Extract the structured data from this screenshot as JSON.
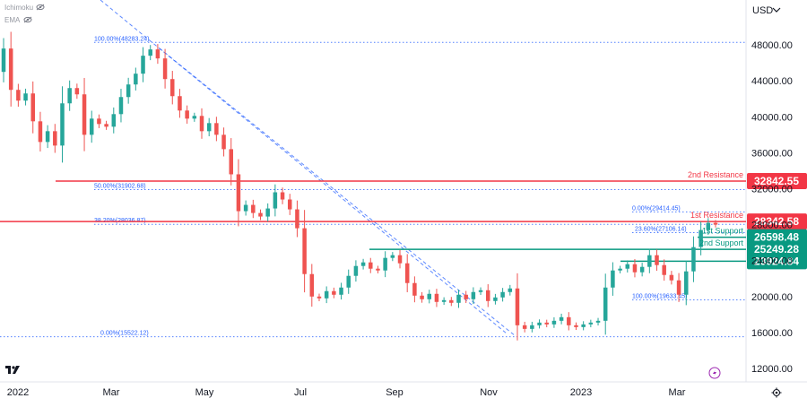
{
  "header": {
    "indicator_1": "Ichimoku",
    "indicator_2": "EMA"
  },
  "currency": "USD",
  "chart_data": {
    "type": "candlestick",
    "y_axis": {
      "ticks": [
        12000,
        16000,
        20000,
        24000,
        28000,
        32000,
        36000,
        40000,
        44000,
        48000
      ],
      "tick_labels": [
        "12000.00",
        "16000.00",
        "20000.00",
        "24000.00",
        "28000.00",
        "32000.00",
        "36000.00",
        "40000.00",
        "44000.00",
        "48000.00"
      ],
      "range": [
        10500,
        53000
      ]
    },
    "x_axis": {
      "labels": [
        "2022",
        "Mar",
        "May",
        "Jul",
        "Sep",
        "Nov",
        "2023",
        "Mar"
      ]
    },
    "candles_sampled": [
      [
        45000,
        47600
      ],
      [
        47600,
        43000
      ],
      [
        43000,
        41800
      ],
      [
        41800,
        42600
      ],
      [
        42600,
        39500
      ],
      [
        39500,
        37200
      ],
      [
        37200,
        38400
      ],
      [
        38400,
        36800
      ],
      [
        36800,
        41500
      ],
      [
        41500,
        43200
      ],
      [
        43200,
        42500
      ],
      [
        42500,
        38000
      ],
      [
        38000,
        39800
      ],
      [
        39800,
        39200
      ],
      [
        39200,
        38900
      ],
      [
        38900,
        40300
      ],
      [
        40300,
        42200
      ],
      [
        42200,
        43600
      ],
      [
        43600,
        44800
      ],
      [
        44800,
        46800
      ],
      [
        46800,
        47500
      ],
      [
        47500,
        46500
      ],
      [
        46500,
        44200
      ],
      [
        44200,
        42300
      ],
      [
        42300,
        40700
      ],
      [
        40700,
        39800
      ],
      [
        39800,
        40100
      ],
      [
        40100,
        38400
      ],
      [
        38400,
        39300
      ],
      [
        39300,
        38000
      ],
      [
        38000,
        36400
      ],
      [
        36400,
        33600
      ],
      [
        33600,
        29500
      ],
      [
        29500,
        30200
      ],
      [
        30200,
        29300
      ],
      [
        29300,
        28900
      ],
      [
        28900,
        29800
      ],
      [
        29800,
        31600
      ],
      [
        31600,
        30800
      ],
      [
        30800,
        29700
      ],
      [
        29700,
        27600
      ],
      [
        27600,
        22500
      ],
      [
        22500,
        20000
      ],
      [
        20000,
        19800
      ],
      [
        19800,
        20600
      ],
      [
        20600,
        20200
      ],
      [
        20200,
        21000
      ],
      [
        21000,
        22300
      ],
      [
        22300,
        23400
      ],
      [
        23400,
        23800
      ],
      [
        23800,
        23100
      ],
      [
        23100,
        22900
      ],
      [
        22900,
        24300
      ],
      [
        24300,
        24600
      ],
      [
        24600,
        23700
      ],
      [
        23700,
        21500
      ],
      [
        21500,
        20100
      ],
      [
        20100,
        19700
      ],
      [
        19700,
        20300
      ],
      [
        20300,
        19400
      ],
      [
        19400,
        19600
      ],
      [
        19600,
        19300
      ],
      [
        19300,
        20200
      ],
      [
        20200,
        19700
      ],
      [
        19700,
        20500
      ],
      [
        20500,
        20700
      ],
      [
        20700,
        19500
      ],
      [
        19500,
        19900
      ],
      [
        19900,
        20500
      ],
      [
        20500,
        20900
      ],
      [
        20900,
        16800
      ],
      [
        16800,
        16400
      ],
      [
        16400,
        16800
      ],
      [
        16800,
        17100
      ],
      [
        17100,
        16900
      ],
      [
        16900,
        17300
      ],
      [
        17300,
        17700
      ],
      [
        17700,
        16800
      ],
      [
        16800,
        16600
      ],
      [
        16600,
        16900
      ],
      [
        16900,
        17100
      ],
      [
        17100,
        17300
      ],
      [
        17300,
        21000
      ],
      [
        21000,
        22900
      ],
      [
        22900,
        23100
      ],
      [
        23100,
        23600
      ],
      [
        23600,
        22700
      ],
      [
        22700,
        23300
      ],
      [
        23300,
        24600
      ],
      [
        24600,
        23500
      ],
      [
        23500,
        22400
      ],
      [
        22400,
        21800
      ],
      [
        21800,
        20200
      ],
      [
        20200,
        22800
      ],
      [
        22800,
        25500
      ],
      [
        25500,
        27400
      ],
      [
        27400,
        28200
      ],
      [
        28200,
        28000
      ]
    ],
    "fibonacci_left": [
      {
        "label": "100.00%(48283.24)",
        "value": 48283.24
      },
      {
        "label": "50.00%(31902.68)",
        "value": 31902.68
      },
      {
        "label": "38.20%(28036.87)",
        "value": 28036.87
      },
      {
        "label": "0.00%(15522.12)",
        "value": 15522.12
      }
    ],
    "fibonacci_right": [
      {
        "label": "0.00%(29414.45)",
        "value": 29414.45
      },
      {
        "label": "23.60%(27106.14)",
        "value": 27106.14
      },
      {
        "label": "100.00%(19633.45)",
        "value": 19633.45
      }
    ],
    "levels": [
      {
        "name": "2nd Resistance",
        "value": 32842.55,
        "label": "32842.55",
        "color": "#f23645"
      },
      {
        "name": "1st Resistance",
        "value": 28342.58,
        "label": "28342.58",
        "color": "#f23645"
      },
      {
        "name": "1st Support",
        "value": 26598.48,
        "label": "26598.48",
        "color": "#089981"
      },
      {
        "name": "2nd Support",
        "value": 25249.28,
        "label": "25249.28",
        "color": "#089981"
      },
      {
        "name": "",
        "value": 23924.84,
        "label": "23924.84",
        "color": "#089981"
      }
    ],
    "colors": {
      "up": "#26a69a",
      "down": "#ef5350",
      "fib_line": "#2962ff",
      "trend_line": "#2962ff"
    },
    "grid": false,
    "legend": "top-left"
  }
}
